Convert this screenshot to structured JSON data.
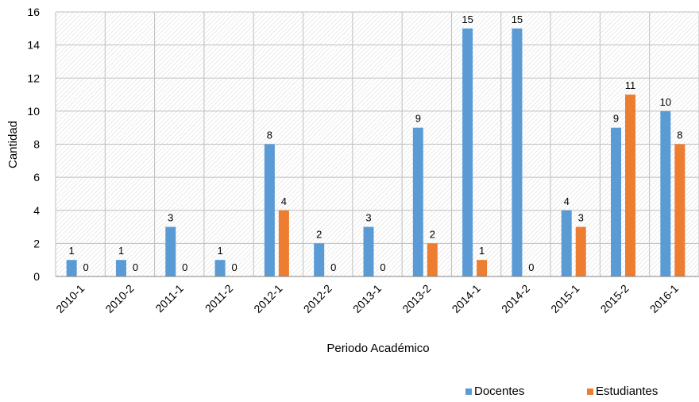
{
  "chart_data": {
    "type": "bar",
    "title": "",
    "xlabel": "Periodo Académico",
    "ylabel": "Cantidad",
    "ylim": [
      0,
      16
    ],
    "yticks": [
      0,
      2,
      4,
      6,
      8,
      10,
      12,
      14,
      16
    ],
    "grid": true,
    "legend_position": "bottom-right",
    "categories": [
      "2010-1",
      "2010-2",
      "2011-1",
      "2011-2",
      "2012-1",
      "2012-2",
      "2013-1",
      "2013-2",
      "2014-1",
      "2014-2",
      "2015-1",
      "2015-2",
      "2016-1"
    ],
    "series": [
      {
        "name": "Docentes",
        "color": "#5B9BD5",
        "values": [
          1,
          1,
          3,
          1,
          8,
          2,
          3,
          9,
          15,
          15,
          4,
          9,
          10
        ]
      },
      {
        "name": "Estudiantes",
        "color": "#ED7D31",
        "values": [
          0,
          0,
          0,
          0,
          4,
          0,
          0,
          2,
          1,
          0,
          3,
          11,
          8
        ]
      }
    ]
  }
}
